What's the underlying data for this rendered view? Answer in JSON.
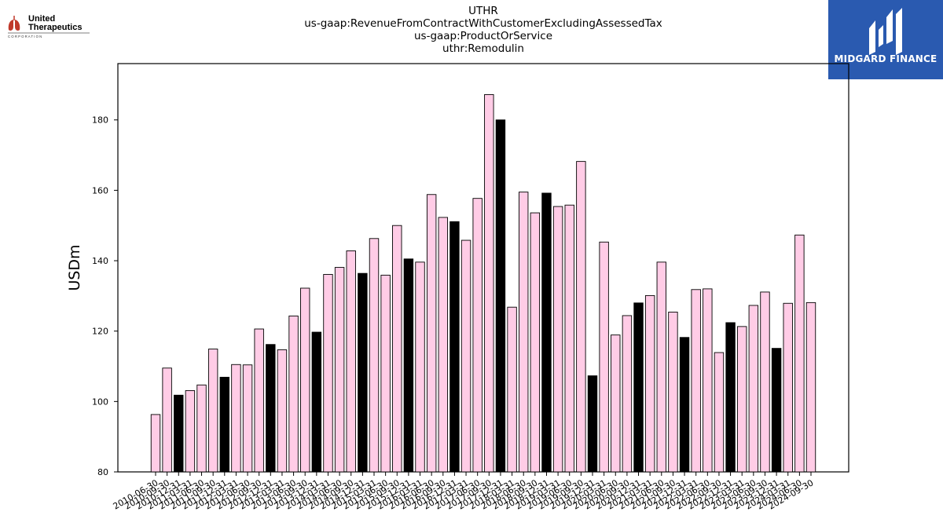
{
  "header": {
    "title_lines": [
      "UTHR",
      "us-gaap:RevenueFromContractWithCustomerExcludingAssessedTax",
      "us-gaap:ProductOrService",
      "uthr:Remodulin"
    ]
  },
  "logos": {
    "left_line1": "United",
    "left_line2": "Therapeutics",
    "left_line3": "C O R P O R A T I O N",
    "right_brand": "MIDGARD FINANCE"
  },
  "colors": {
    "bar_pink": "#ffcce6",
    "bar_black": "#000000",
    "logo_bg": "#2a5ab0"
  },
  "chart_data": {
    "type": "bar",
    "ylabel": "USDm",
    "xlabel": "",
    "ylim": [
      80,
      196
    ],
    "yticks": [
      80,
      100,
      120,
      140,
      160,
      180
    ],
    "grid": false,
    "categories": [
      "2010-06-30",
      "2010-09-30",
      "2010-12-31",
      "2011-03-31",
      "2011-06-30",
      "2011-09-30",
      "2011-12-31",
      "2012-03-31",
      "2012-06-30",
      "2012-09-30",
      "2012-12-31",
      "2013-03-31",
      "2013-06-30",
      "2013-09-30",
      "2013-12-31",
      "2014-03-31",
      "2014-06-30",
      "2014-09-30",
      "2014-12-31",
      "2015-03-31",
      "2015-06-30",
      "2015-09-30",
      "2015-12-31",
      "2016-03-31",
      "2016-06-30",
      "2016-09-30",
      "2016-12-31",
      "2017-03-31",
      "2017-06-30",
      "2017-09-30",
      "2017-12-31",
      "2018-03-31",
      "2018-06-30",
      "2018-09-30",
      "2018-12-31",
      "2019-03-31",
      "2019-06-30",
      "2019-09-30",
      "2019-12-31",
      "2020-03-31",
      "2020-06-30",
      "2020-09-30",
      "2020-12-31",
      "2021-03-31",
      "2021-06-30",
      "2021-09-30",
      "2021-12-31",
      "2022-03-31",
      "2022-06-30",
      "2022-09-30",
      "2022-12-31",
      "2023-03-31",
      "2023-06-30",
      "2023-09-30",
      "2023-12-31",
      "2024-03-31",
      "2024-06-30",
      "2024-09-30"
    ],
    "values": [
      96.3,
      109.5,
      101.8,
      103.1,
      104.7,
      114.9,
      106.9,
      110.5,
      110.4,
      120.6,
      116.2,
      114.7,
      124.3,
      132.2,
      119.7,
      136.1,
      138.1,
      142.8,
      136.4,
      146.3,
      135.9,
      150.0,
      140.5,
      139.6,
      158.8,
      152.3,
      151.1,
      145.8,
      157.7,
      187.2,
      180.0,
      126.8,
      159.5,
      153.6,
      159.2,
      155.4,
      155.8,
      168.2,
      107.3,
      145.3,
      118.9,
      124.4,
      128.0,
      130.1,
      139.6,
      125.4,
      118.2,
      131.8,
      132.0,
      113.9,
      122.4,
      121.3,
      127.3,
      131.1,
      115.1,
      127.9,
      147.3,
      128.1
    ],
    "highlight": [
      false,
      false,
      true,
      false,
      false,
      false,
      true,
      false,
      false,
      false,
      true,
      false,
      false,
      false,
      true,
      false,
      false,
      false,
      true,
      false,
      false,
      false,
      true,
      false,
      false,
      false,
      true,
      false,
      false,
      false,
      true,
      false,
      false,
      false,
      true,
      false,
      false,
      false,
      true,
      false,
      false,
      false,
      true,
      false,
      false,
      false,
      true,
      false,
      false,
      false,
      true,
      false,
      false,
      false,
      true,
      false,
      false,
      false
    ]
  }
}
